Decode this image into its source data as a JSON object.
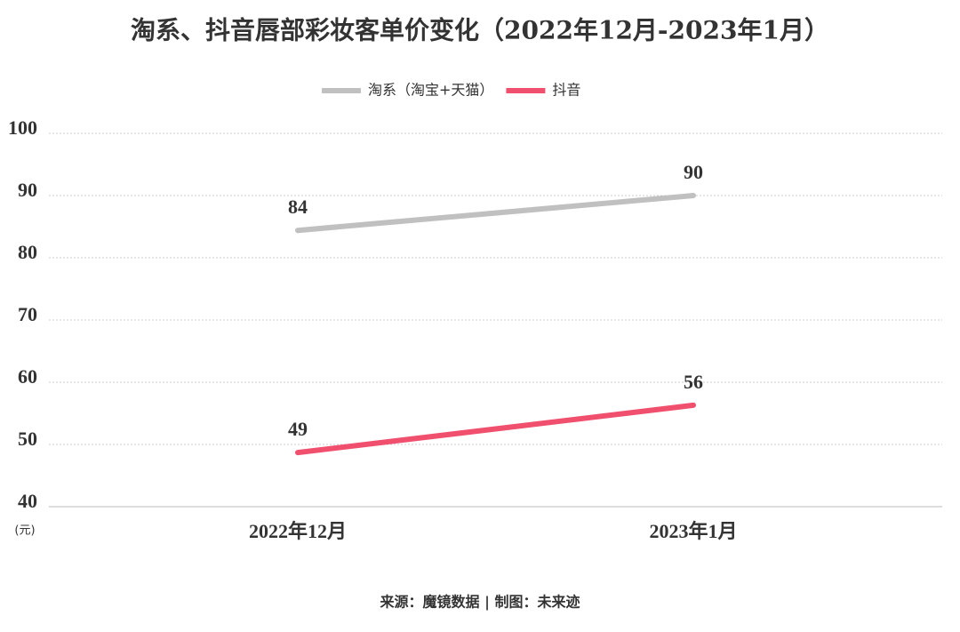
{
  "chart_data": {
    "type": "line",
    "title": "淘系、抖音唇部彩妆客单价变化（2022年12月-2023年1月）",
    "categories": [
      "2022年12月",
      "2023年1月"
    ],
    "series": [
      {
        "name": "淘系（淘宝+天猫）",
        "color": "#c0c0c0",
        "values": [
          84.4,
          90
        ],
        "value_labels": [
          "84",
          "90"
        ]
      },
      {
        "name": "抖音",
        "color": "#f0506e",
        "values": [
          48.7,
          56.3
        ],
        "value_labels": [
          "49",
          "56"
        ]
      }
    ],
    "ylim": [
      40,
      100
    ],
    "yticks": [
      40,
      50,
      60,
      70,
      80,
      90,
      100
    ],
    "y_unit": "(元)",
    "grid": true,
    "legend": "top",
    "source": "来源：魔镜数据 | 制图：未来迹"
  }
}
